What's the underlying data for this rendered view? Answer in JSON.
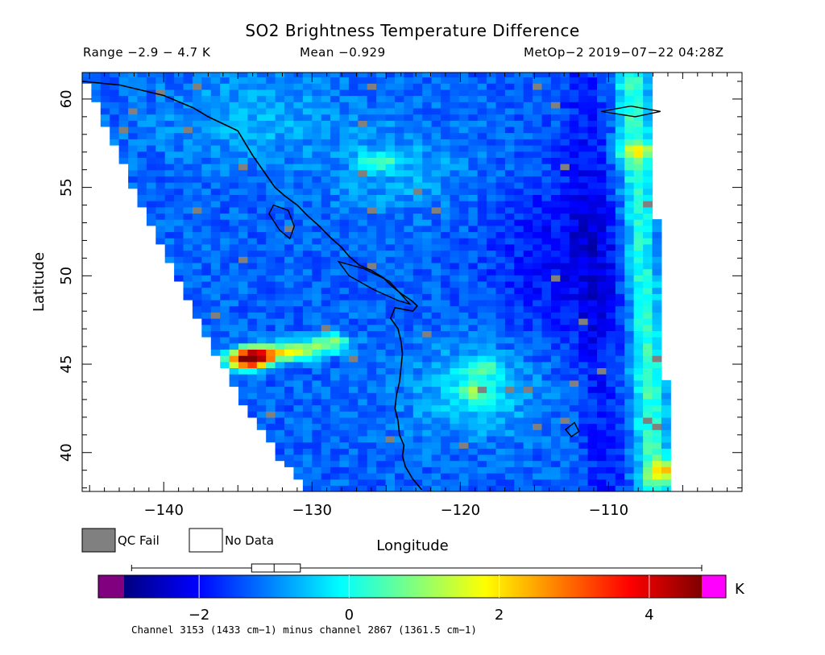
{
  "chart_data": {
    "type": "heatmap",
    "title": "SO2 Brightness Temperature Difference",
    "stats": {
      "range": "Range −2.9 − 4.7 K",
      "mean": "Mean −0.929",
      "source": "MetOp−2 2019−07−22 04:28Z"
    },
    "xlabel": "Longitude",
    "ylabel": "Latitude",
    "xlim": [
      -145.5,
      -101
    ],
    "ylim": [
      37.8,
      61.5
    ],
    "xticks_major": [
      -140,
      -130,
      -120,
      -110
    ],
    "xtick_labels": [
      "−140",
      "−130",
      "−120",
      "−110"
    ],
    "yticks_major": [
      40,
      45,
      50,
      55,
      60
    ],
    "ytick_labels": [
      "40",
      "45",
      "50",
      "55",
      "60"
    ],
    "colorbar": {
      "range": [
        -3,
        4.7
      ],
      "unit": "K",
      "ticks": [
        -2,
        0,
        2,
        4
      ],
      "tick_labels": [
        "−2",
        "0",
        "2",
        "4"
      ],
      "under_color": "#800080",
      "over_color": "#ff00ff",
      "stops": [
        "#00007f",
        "#0000ff",
        "#007fff",
        "#00ffff",
        "#7fff7f",
        "#ffff00",
        "#ff7f00",
        "#ff0000",
        "#7f0000"
      ]
    },
    "boxplot": {
      "whisker_low": -2.9,
      "q1": -1.3,
      "median": -1.0,
      "q3": -0.65,
      "whisker_high": 4.7
    },
    "legend": {
      "qc_fail_label": "QC Fail",
      "qc_fail_color": "#808080",
      "no_data_label": "No Data",
      "no_data_color": "#ffffff"
    },
    "hotspots": [
      {
        "lon": -134.4,
        "lat": 45.3,
        "value": 4.3
      },
      {
        "lon": -133.2,
        "lat": 45.6,
        "value": 2.2
      },
      {
        "lon": -131.0,
        "lat": 45.8,
        "value": 1.4
      },
      {
        "lon": -128.8,
        "lat": 46.2,
        "value": 1.0
      },
      {
        "lon": -119.0,
        "lat": 43.5,
        "value": 0.3
      },
      {
        "lon": -118.5,
        "lat": 44.8,
        "value": 0.0
      },
      {
        "lon": -125.5,
        "lat": 56.5,
        "value": 0.2
      },
      {
        "lon": -108.0,
        "lat": 57.0,
        "value": 0.6
      },
      {
        "lon": -106.0,
        "lat": 39.0,
        "value": 1.2
      }
    ],
    "footnote": "Channel 3153 (1433 cm−1) minus channel 2867 (1361.5 cm−1)"
  }
}
